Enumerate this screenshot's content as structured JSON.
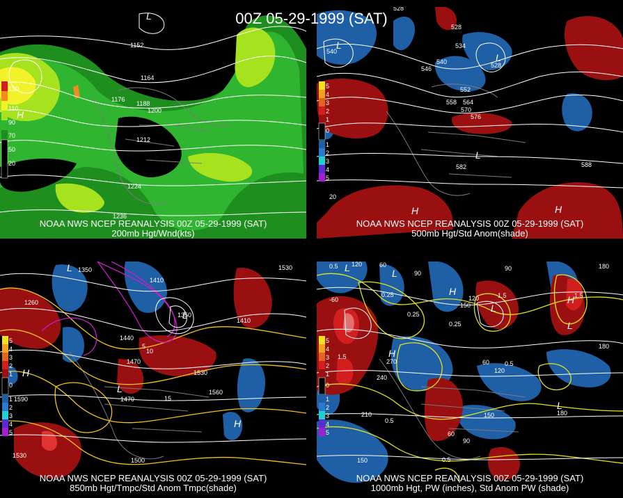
{
  "header": {
    "title": "00Z 05-29-1999 (SAT)"
  },
  "panels": [
    {
      "caption1": "NOAA NWS NCEP REANALYSIS 00Z 05-29-1999 (SAT)",
      "caption2": "200mb Hgt/Wnd(kts)",
      "legend": [
        "130",
        "110",
        "90",
        "70",
        "50",
        "20"
      ],
      "labels": [
        "1152",
        "1164",
        "1176",
        "1188",
        "1200",
        "1212",
        "1224",
        "1236"
      ],
      "highs_lows": [
        "L",
        "H"
      ]
    },
    {
      "caption1": "NOAA NWS NCEP REANALYSIS 00Z 05-29-1999 (SAT)",
      "caption2": "500mb Hgt/Std Anom(shade)",
      "legend": [
        "5",
        "4",
        "3",
        "2",
        "1",
        "0",
        "1",
        "2",
        "3",
        "4",
        "5"
      ],
      "labels": [
        "528",
        "528",
        "534",
        "540",
        "546",
        "552",
        "558",
        "564",
        "570",
        "576",
        "582",
        "588",
        "540",
        "528",
        "20"
      ],
      "highs_lows": [
        "L",
        "L",
        "L",
        "H",
        "H"
      ]
    },
    {
      "caption1": "NOAA NWS NCEP REANALYSIS 00Z 05-29-1999 (SAT)",
      "caption2": "850mb Hgt/Tmpc/Std Anom Tmpc(shade)",
      "legend": [
        "5",
        "4",
        "3",
        "2",
        "1",
        "0",
        "1",
        "2",
        "3",
        "4",
        "5"
      ],
      "labels": [
        "1350",
        "1350",
        "1410",
        "1350",
        "1410",
        "1440",
        "1470",
        "1470",
        "1530",
        "1530",
        "1560",
        "1500",
        "1590",
        "1530",
        "1260",
        "5",
        "10",
        "15"
      ],
      "highs_lows": [
        "L",
        "L",
        "H",
        "H",
        "L"
      ]
    },
    {
      "caption1": "NOAA NWS NCEP REANALYSIS 00Z 05-29-1999 (SAT)",
      "caption2": "1000mb Hgt, PW (inches), Std Anom PW (shade)",
      "legend": [
        "5",
        "4",
        "3",
        "2",
        "1",
        "0",
        "1",
        "2",
        "3",
        "4",
        "5"
      ],
      "labels": [
        "120",
        "60",
        "90",
        "90",
        "-60",
        "150",
        "120",
        "180",
        "180",
        "240",
        "270",
        "210",
        "180",
        "150",
        "150",
        "120",
        "60",
        "90",
        "60",
        "0.25",
        "0.25",
        "0.25",
        "0.5",
        "0.5",
        "0.5",
        "0.5",
        "1.5",
        "1.5",
        "1.5"
      ],
      "highs_lows": [
        "L",
        "L",
        "L",
        "H",
        "H",
        "H",
        "L",
        "L"
      ]
    }
  ]
}
